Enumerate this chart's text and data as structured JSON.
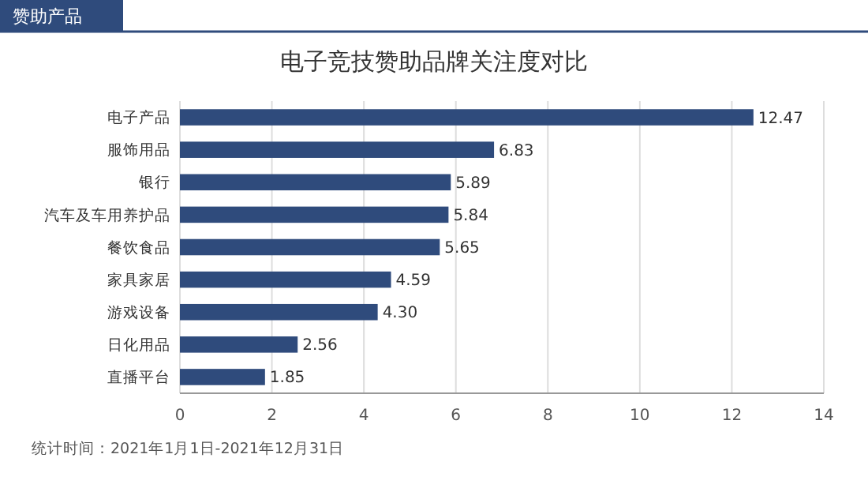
{
  "chart_data": {
    "type": "bar",
    "orientation": "horizontal",
    "title": "电子竞技赞助品牌关注度对比",
    "subtitle": "赞助产品",
    "categories": [
      "电子产品",
      "服饰用品",
      "银行",
      "汽车及车用养护品",
      "餐饮食品",
      "家具家居",
      "游戏设备",
      "日化用品",
      "直播平台"
    ],
    "values": [
      12.47,
      6.83,
      5.89,
      5.84,
      5.65,
      4.59,
      4.3,
      2.56,
      1.85
    ],
    "value_labels": [
      "12.47",
      "6.83",
      "5.89",
      "5.84",
      "5.65",
      "4.59",
      "4.30",
      "2.56",
      "1.85"
    ],
    "color": "#2f4b7c",
    "xlim": [
      0,
      14
    ],
    "xticks": [
      0,
      2,
      4,
      6,
      8,
      10,
      12,
      14
    ],
    "grid": "x",
    "annotations": [
      "统计时间：2021年1月1日-2021年12月31日"
    ]
  }
}
